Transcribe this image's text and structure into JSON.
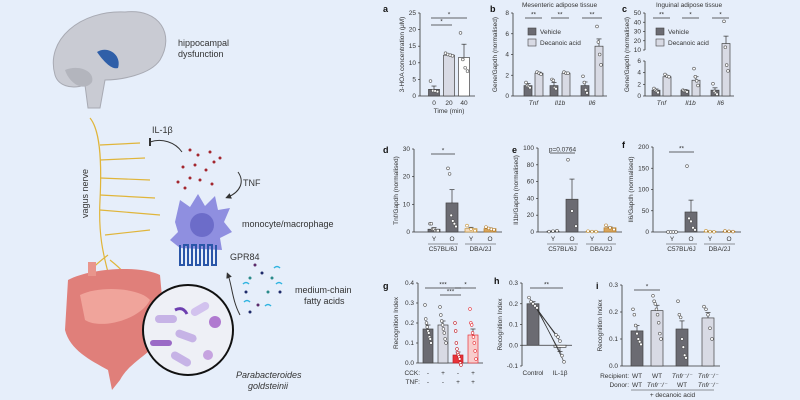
{
  "illustration": {
    "labels": {
      "hippocampal": "hippocampal",
      "dysfunction": "dysfunction",
      "il1b": "IL-1β",
      "tnf": "TNF",
      "vagus": "vagus nerve",
      "macrophage": "monocyte/macrophage",
      "gpr84": "GPR84",
      "mcfa1": "medium-chain",
      "mcfa2": "fatty acids",
      "bacteria1": "Parabacteroides",
      "bacteria2": "goldsteinii"
    },
    "colors": {
      "background": "#e6eefa",
      "brain": "#c9cbd3",
      "hippocampus": "#2f5fa8",
      "nerve": "#e0b53a",
      "macrophage": "#8f8fe0",
      "receptor": "#2a56a8",
      "gut": "#e07f7a",
      "tnf_dots": "#a3262e"
    }
  },
  "chart_data": [
    {
      "id": "a",
      "type": "bar",
      "panel_label": "a",
      "title": "",
      "ylabel": "3-HOA concentration (μM)",
      "xlabel": "Time (min)",
      "ylim": [
        0,
        25
      ],
      "yticks": [
        0,
        5,
        10,
        15,
        20,
        25
      ],
      "ytick_labels": [
        "0",
        "5",
        "10",
        "15",
        "20",
        "25"
      ],
      "categories": [
        [
          "0",
          "20",
          "40"
        ]
      ],
      "bars": [
        {
          "value": 2,
          "err": 1,
          "color": "#6b6b72",
          "points": [
            4.5,
            1.6,
            1.5,
            1.3
          ]
        },
        {
          "value": 12.3,
          "err": 0.4,
          "color": "#d8dae4",
          "points": [
            12.9,
            12.5,
            12.3,
            12.1
          ]
        },
        {
          "value": 11.6,
          "err": 4,
          "color": "#ffffff",
          "points": [
            19,
            11,
            8.5,
            7.5
          ]
        }
      ],
      "sig": [
        {
          "from": 0,
          "to": 2,
          "label": "*",
          "row": 0
        },
        {
          "from": 0,
          "to": 1,
          "label": "*",
          "row": 1
        }
      ]
    },
    {
      "id": "b",
      "type": "bar",
      "panel_label": "b",
      "title": "Mesenteric adipose tissue",
      "ylabel": "Gene/Gapdh (normalised)",
      "ylim": [
        0,
        8
      ],
      "yticks": [
        0,
        2,
        4,
        6,
        8
      ],
      "ytick_labels": [
        "0",
        "2",
        "4",
        "6",
        "8"
      ],
      "legend": [
        {
          "name": "Vehicle",
          "color": "#6b6b72"
        },
        {
          "name": "Decanoic acid",
          "color": "#d8dae4"
        }
      ],
      "group_labels": [
        {
          "label": "Tnf",
          "bars": [
            0,
            1
          ]
        },
        {
          "label": "Il1b",
          "bars": [
            2,
            3
          ]
        },
        {
          "label": "Il6",
          "bars": [
            4,
            5
          ]
        }
      ],
      "bars": [
        {
          "value": 1,
          "err": 0.2,
          "color": "#6b6b72",
          "points": [
            1.3,
            1,
            0.9,
            0.8
          ]
        },
        {
          "value": 2.2,
          "err": 0.1,
          "color": "#d8dae4",
          "points": [
            2.3,
            2.2,
            2.1
          ]
        },
        {
          "value": 1,
          "err": 0.3,
          "color": "#6b6b72",
          "points": [
            1.6,
            1.5,
            0.8,
            0.7
          ]
        },
        {
          "value": 2.2,
          "err": 0.05,
          "color": "#d8dae4",
          "points": [
            2.3,
            2.2,
            2.2
          ]
        },
        {
          "value": 1,
          "err": 0.35,
          "color": "#6b6b72",
          "points": [
            1.9,
            1.3,
            0.6,
            0.3
          ]
        },
        {
          "value": 4.8,
          "err": 0.7,
          "color": "#d8dae4",
          "points": [
            6.7,
            5.2,
            4,
            3
          ]
        }
      ],
      "sig": [
        {
          "from": 0,
          "to": 1,
          "label": "**",
          "row": 0
        },
        {
          "from": 2,
          "to": 3,
          "label": "**",
          "row": 0
        },
        {
          "from": 4,
          "to": 5,
          "label": "**",
          "row": 0
        }
      ]
    },
    {
      "id": "c",
      "type": "bar",
      "panel_label": "c",
      "title": "Inguinal adipose tissue",
      "ylabel": "Gene/Gapdh (normalised)",
      "ylim": [
        0,
        50
      ],
      "axis_break": [
        6,
        10
      ],
      "yticks": [
        0,
        2,
        4,
        6,
        10,
        20,
        30,
        40,
        50
      ],
      "ytick_labels": [
        "0",
        "2",
        "4",
        "6",
        "10",
        "20",
        "30",
        "40",
        "50"
      ],
      "legend": [
        {
          "name": "Vehicle",
          "color": "#6b6b72"
        },
        {
          "name": "Decanoic acid",
          "color": "#d8dae4"
        }
      ],
      "group_labels": [
        {
          "label": "Tnf",
          "bars": [
            0,
            1
          ]
        },
        {
          "label": "Il1b",
          "bars": [
            2,
            3
          ]
        },
        {
          "label": "Il6",
          "bars": [
            4,
            5
          ]
        }
      ],
      "bars": [
        {
          "value": 1,
          "err": 0.2,
          "color": "#6b6b72",
          "points": [
            1.3,
            1,
            0.8,
            0.6
          ]
        },
        {
          "value": 3.3,
          "err": 0.15,
          "color": "#d8dae4",
          "points": [
            3.7,
            3.4,
            3.3
          ]
        },
        {
          "value": 1,
          "err": 0.1,
          "color": "#6b6b72",
          "points": [
            1,
            0.9,
            0.8,
            0.7
          ]
        },
        {
          "value": 2.7,
          "err": 0.6,
          "color": "#d8dae4",
          "points": [
            4.7,
            3.3,
            2.6,
            1.8
          ]
        },
        {
          "value": 1,
          "err": 0.4,
          "color": "#6b6b72",
          "points": [
            2.1,
            0.8,
            0.5,
            0.3
          ]
        },
        {
          "value": 17,
          "err": 8,
          "color": "#d8dae4",
          "points": [
            41,
            13,
            5.3,
            4.3
          ]
        }
      ],
      "sig": [
        {
          "from": 0,
          "to": 1,
          "label": "**",
          "row": 0
        },
        {
          "from": 2,
          "to": 3,
          "label": "*",
          "row": 0
        },
        {
          "from": 4,
          "to": 5,
          "label": "*",
          "row": 0
        }
      ]
    },
    {
      "id": "d",
      "type": "bar",
      "panel_label": "d",
      "title": "",
      "ylabel": "Tnf/Gapdh (normalised)",
      "ylim": [
        0,
        30
      ],
      "yticks": [
        0,
        10,
        20,
        30
      ],
      "ytick_labels": [
        "0",
        "10",
        "20",
        "30"
      ],
      "categories": [
        [
          "Y",
          "O",
          "Y",
          "O"
        ]
      ],
      "group_labels": [
        {
          "label": "C57BL/6J",
          "bars": [
            0,
            1
          ],
          "underline": true
        },
        {
          "label": "DBA/2J",
          "bars": [
            2,
            3
          ],
          "underline": true
        }
      ],
      "bars": [
        {
          "value": 1,
          "err": 0.6,
          "color": "#6b6b72",
          "points": [
            3,
            3,
            1,
            1,
            0.5,
            0.5,
            0.5
          ]
        },
        {
          "value": 10.5,
          "err": 4.8,
          "color": "#6b6b72",
          "points": [
            23,
            21,
            6,
            4,
            3,
            2
          ]
        },
        {
          "value": 1.2,
          "err": 0.5,
          "color": "#f4dcc0",
          "stroke": "#c8953a",
          "points": [
            2.3,
            1,
            0.5
          ]
        },
        {
          "value": 1.2,
          "err": 0.3,
          "color": "#d9a55b",
          "stroke": "#b57d2a",
          "points": [
            1.8,
            1.3,
            1,
            0.8
          ]
        }
      ],
      "sig": [
        {
          "from": 0,
          "to": 1,
          "label": "*",
          "row": 0
        }
      ]
    },
    {
      "id": "e",
      "type": "bar",
      "panel_label": "e",
      "title": "",
      "ylabel": "Il1b/Gapdh (normalised)",
      "ylim": [
        0,
        100
      ],
      "yticks": [
        0,
        20,
        40,
        60,
        80,
        100
      ],
      "ytick_labels": [
        "0",
        "20",
        "40",
        "60",
        "80",
        "100"
      ],
      "categories": [
        [
          "Y",
          "O",
          "Y",
          "O"
        ]
      ],
      "group_labels": [
        {
          "label": "C57BL/6J",
          "bars": [
            0,
            1
          ],
          "underline": true
        },
        {
          "label": "DBA/2J",
          "bars": [
            2,
            3
          ],
          "underline": true
        }
      ],
      "bars": [
        {
          "value": 0.8,
          "err": 0.3,
          "color": "#6b6b72",
          "points": [
            0.5,
            1,
            1.5
          ]
        },
        {
          "value": 39,
          "err": 24,
          "color": "#6b6b72",
          "points": [
            86,
            25,
            7
          ]
        },
        {
          "value": 0.7,
          "err": 0.3,
          "color": "#f4dcc0",
          "stroke": "#c8953a",
          "points": [
            1,
            0.5,
            0.5
          ]
        },
        {
          "value": 5,
          "err": 1,
          "color": "#d9a55b",
          "stroke": "#b57d2a",
          "points": [
            8,
            5,
            3
          ]
        }
      ],
      "sig": [
        {
          "from": 0,
          "to": 1,
          "label": "p=0.0764",
          "row": 0
        }
      ]
    },
    {
      "id": "f",
      "type": "bar",
      "panel_label": "f",
      "title": "",
      "ylabel": "Il6/Gapdh (normalised)",
      "ylim": [
        0,
        200
      ],
      "yticks": [
        0,
        50,
        100,
        150,
        200
      ],
      "ytick_labels": [
        "0",
        "50",
        "100",
        "150",
        "200"
      ],
      "categories": [
        [
          "Y",
          "O",
          "Y",
          "O"
        ]
      ],
      "group_labels": [
        {
          "label": "C57BL/6J",
          "bars": [
            0,
            1
          ],
          "underline": true
        },
        {
          "label": "DBA/2J",
          "bars": [
            2,
            3
          ],
          "underline": true
        }
      ],
      "bars": [
        {
          "value": 0.3,
          "err": 0.1,
          "color": "#6b6b72",
          "points": [
            0,
            0,
            0,
            0
          ]
        },
        {
          "value": 47,
          "err": 28,
          "color": "#6b6b72",
          "points": [
            155,
            32,
            25,
            10,
            5
          ]
        },
        {
          "value": 1.5,
          "err": 0.5,
          "color": "#f4dcc0",
          "stroke": "#c8953a",
          "points": [
            3,
            1,
            0.5
          ]
        },
        {
          "value": 1.5,
          "err": 0.5,
          "color": "#d9a55b",
          "stroke": "#b57d2a",
          "points": [
            2.5,
            1.5,
            1
          ]
        }
      ],
      "sig": [
        {
          "from": 0,
          "to": 1,
          "label": "**",
          "row": 0
        }
      ]
    },
    {
      "id": "g",
      "type": "bar",
      "panel_label": "g",
      "title": "",
      "ylabel": "Recognition Index",
      "ylim": [
        0,
        0.4
      ],
      "yticks": [
        0,
        0.1,
        0.2,
        0.3,
        0.4
      ],
      "ytick_labels": [
        "0.0",
        "0.1",
        "0.2",
        "0.3",
        "0.4"
      ],
      "row_labels": [
        "CCK:",
        "TNF:"
      ],
      "categories": [
        [
          "-",
          "+",
          "-",
          "+"
        ],
        [
          "-",
          "-",
          "+",
          "+"
        ]
      ],
      "bars": [
        {
          "value": 0.17,
          "err": 0.02,
          "color": "#6b6b72",
          "points": [
            0.29,
            0.22,
            0.2,
            0.18,
            0.16,
            0.15,
            0.13,
            0.12,
            0.1
          ]
        },
        {
          "value": 0.19,
          "err": 0.02,
          "color": "#d8dae4",
          "points": [
            0.28,
            0.24,
            0.21,
            0.19,
            0.17,
            0.15,
            0.12,
            0.1
          ]
        },
        {
          "value": 0.04,
          "err": 0.015,
          "color": "#e8333a",
          "stroke": "#c41f26",
          "points": [
            0.2,
            0.16,
            0.1,
            0.07,
            0.05,
            0.04,
            0.03,
            0.02,
            0.0,
            -0.01
          ]
        },
        {
          "value": 0.14,
          "err": 0.03,
          "color": "#f8cccc",
          "stroke": "#e8333a",
          "points": [
            0.27,
            0.2,
            0.19,
            0.15,
            0.13,
            0.1,
            0.06,
            0.02
          ]
        }
      ],
      "sig": [
        {
          "from": 0,
          "to": 2,
          "label": "***",
          "row": 0
        },
        {
          "from": 2,
          "to": 3,
          "label": "*",
          "row": 0
        },
        {
          "from": 1,
          "to": 2,
          "label": "***",
          "row": 1
        }
      ]
    },
    {
      "id": "h",
      "type": "bar",
      "panel_label": "h",
      "title": "",
      "ylabel": "Recognition Index",
      "ylim": [
        -0.1,
        0.3
      ],
      "yticks": [
        -0.1,
        0,
        0.1,
        0.2,
        0.3
      ],
      "ytick_labels": [
        "-0.1",
        "0.0",
        "0.1",
        "0.2",
        "0.3"
      ],
      "categories": [
        [
          "Control",
          "IL-1β"
        ]
      ],
      "paired": true,
      "bars": [
        {
          "value": 0.2,
          "err": 0.01,
          "color": "#6b6b72",
          "points": [
            0.23,
            0.21,
            0.2,
            0.19,
            0.18
          ]
        },
        {
          "value": -0.01,
          "err": 0.02,
          "color": "#ffffff",
          "points": [
            0.05,
            0.04,
            0.02,
            -0.05,
            -0.08
          ]
        }
      ],
      "sig": [
        {
          "from": 0,
          "to": 1,
          "label": "**",
          "row": 0
        }
      ]
    },
    {
      "id": "i",
      "type": "bar",
      "panel_label": "i",
      "title": "",
      "ylabel": "Recognition Index",
      "ylim": [
        0,
        0.3
      ],
      "yticks": [
        0,
        0.1,
        0.2,
        0.3
      ],
      "ytick_labels": [
        "0.0",
        "0.1",
        "0.2",
        "0.3"
      ],
      "row_labels": [
        "Recipient:",
        "Donor:"
      ],
      "categories": [
        [
          "WT",
          "WT",
          "Tnfr⁻/⁻",
          "Tnfr⁻/⁻"
        ],
        [
          "WT",
          "Tnfr⁻/⁻",
          "WT",
          "Tnfr⁻/⁻"
        ]
      ],
      "footer": "+ decanoic acid",
      "bars": [
        {
          "value": 0.13,
          "err": 0.02,
          "color": "#6b6b72",
          "points": [
            0.21,
            0.19,
            0.15,
            0.12,
            0.1,
            0.09,
            0.08
          ]
        },
        {
          "value": 0.205,
          "err": 0.02,
          "color": "#d8dae4",
          "points": [
            0.26,
            0.24,
            0.23,
            0.21,
            0.19,
            0.16,
            0.12,
            0.1
          ]
        },
        {
          "value": 0.137,
          "err": 0.03,
          "color": "#6b6b72",
          "points": [
            0.24,
            0.19,
            0.18,
            0.1,
            0.07,
            0.04,
            0.03
          ]
        },
        {
          "value": 0.178,
          "err": 0.02,
          "color": "#d8dae4",
          "points": [
            0.22,
            0.21,
            0.19,
            0.14,
            0.1
          ]
        }
      ],
      "sig": [
        {
          "from": 0,
          "to": 1,
          "label": "*",
          "row": 0
        }
      ]
    }
  ]
}
